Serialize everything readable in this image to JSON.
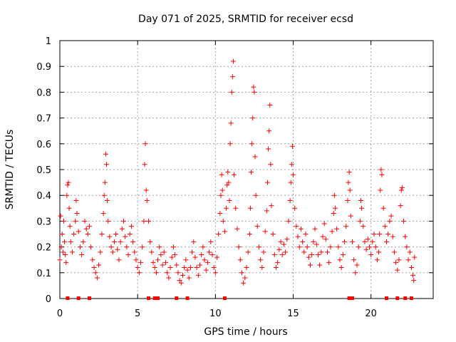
{
  "chart_data": {
    "type": "scatter",
    "title": "Day 071 of 2025, SRMTID for receiver ecsd",
    "xlabel": "GPS time / hours",
    "ylabel": "SRMTID / TECUs",
    "xlim": [
      0,
      24
    ],
    "ylim": [
      0,
      1
    ],
    "xticks": [
      0,
      5,
      10,
      15,
      20
    ],
    "xtick_labels": [
      "0",
      "5",
      "10",
      "15",
      "20"
    ],
    "yticks": [
      0,
      0.1,
      0.2,
      0.3,
      0.4,
      0.5,
      0.6,
      0.7,
      0.8,
      0.9,
      1
    ],
    "ytick_labels": [
      "0",
      "0.1",
      "0.2",
      "0.3",
      "0.4",
      "0.5",
      "0.6",
      "0.7",
      "0.8",
      "0.9",
      "1"
    ],
    "grid": true,
    "marker": "+",
    "color": "#ff0000",
    "series": [
      {
        "name": "SRMTID",
        "points": [
          [
            0.0,
            0.15
          ],
          [
            0.05,
            0.32
          ],
          [
            0.1,
            0.2
          ],
          [
            0.15,
            0.25
          ],
          [
            0.2,
            0.18
          ],
          [
            0.25,
            0.3
          ],
          [
            0.3,
            0.22
          ],
          [
            0.35,
            0.17
          ],
          [
            0.4,
            0.14
          ],
          [
            0.45,
            0.4
          ],
          [
            0.5,
            0.44
          ],
          [
            0.55,
            0.45
          ],
          [
            0.6,
            0.35
          ],
          [
            0.65,
            0.28
          ],
          [
            0.7,
            0.22
          ],
          [
            0.8,
            0.18
          ],
          [
            0.9,
            0.25
          ],
          [
            1.0,
            0.3
          ],
          [
            1.05,
            0.38
          ],
          [
            1.1,
            0.33
          ],
          [
            1.2,
            0.26
          ],
          [
            1.3,
            0.2
          ],
          [
            1.4,
            0.17
          ],
          [
            1.5,
            0.22
          ],
          [
            1.6,
            0.3
          ],
          [
            1.7,
            0.27
          ],
          [
            1.8,
            0.25
          ],
          [
            1.9,
            0.28
          ],
          [
            2.0,
            0.2
          ],
          [
            2.1,
            0.15
          ],
          [
            2.2,
            0.12
          ],
          [
            2.3,
            0.1
          ],
          [
            2.4,
            0.08
          ],
          [
            2.5,
            0.13
          ],
          [
            2.6,
            0.18
          ],
          [
            2.7,
            0.25
          ],
          [
            2.8,
            0.33
          ],
          [
            2.85,
            0.4
          ],
          [
            2.9,
            0.45
          ],
          [
            2.95,
            0.56
          ],
          [
            3.0,
            0.52
          ],
          [
            3.05,
            0.38
          ],
          [
            3.1,
            0.3
          ],
          [
            3.2,
            0.24
          ],
          [
            3.3,
            0.2
          ],
          [
            3.4,
            0.18
          ],
          [
            3.5,
            0.22
          ],
          [
            3.6,
            0.25
          ],
          [
            3.7,
            0.19
          ],
          [
            3.8,
            0.15
          ],
          [
            3.9,
            0.22
          ],
          [
            4.0,
            0.27
          ],
          [
            4.1,
            0.3
          ],
          [
            4.2,
            0.24
          ],
          [
            4.3,
            0.2
          ],
          [
            4.4,
            0.17
          ],
          [
            4.5,
            0.25
          ],
          [
            4.6,
            0.28
          ],
          [
            4.7,
            0.22
          ],
          [
            4.8,
            0.18
          ],
          [
            4.9,
            0.15
          ],
          [
            5.0,
            0.12
          ],
          [
            5.1,
            0.1
          ],
          [
            5.2,
            0.14
          ],
          [
            5.3,
            0.2
          ],
          [
            5.4,
            0.3
          ],
          [
            5.45,
            0.52
          ],
          [
            5.5,
            0.6
          ],
          [
            5.55,
            0.42
          ],
          [
            5.6,
            0.38
          ],
          [
            5.7,
            0.3
          ],
          [
            5.8,
            0.22
          ],
          [
            5.9,
            0.18
          ],
          [
            6.0,
            0.14
          ],
          [
            6.1,
            0.12
          ],
          [
            6.2,
            0.1
          ],
          [
            6.3,
            0.15
          ],
          [
            6.4,
            0.2
          ],
          [
            6.5,
            0.17
          ],
          [
            6.6,
            0.13
          ],
          [
            6.7,
            0.18
          ],
          [
            6.8,
            0.14
          ],
          [
            6.9,
            0.1
          ],
          [
            7.0,
            0.08
          ],
          [
            7.1,
            0.12
          ],
          [
            7.2,
            0.16
          ],
          [
            7.3,
            0.2
          ],
          [
            7.4,
            0.17
          ],
          [
            7.5,
            0.13
          ],
          [
            7.6,
            0.1
          ],
          [
            7.7,
            0.07
          ],
          [
            7.8,
            0.06
          ],
          [
            7.9,
            0.09
          ],
          [
            8.0,
            0.12
          ],
          [
            8.1,
            0.15
          ],
          [
            8.2,
            0.11
          ],
          [
            8.3,
            0.08
          ],
          [
            8.4,
            0.12
          ],
          [
            8.5,
            0.18
          ],
          [
            8.6,
            0.22
          ],
          [
            8.7,
            0.16
          ],
          [
            8.8,
            0.12
          ],
          [
            8.9,
            0.09
          ],
          [
            9.0,
            0.13
          ],
          [
            9.1,
            0.17
          ],
          [
            9.2,
            0.2
          ],
          [
            9.3,
            0.15
          ],
          [
            9.4,
            0.11
          ],
          [
            9.5,
            0.14
          ],
          [
            9.6,
            0.18
          ],
          [
            9.7,
            0.22
          ],
          [
            9.8,
            0.17
          ],
          [
            9.9,
            0.12
          ],
          [
            10.0,
            0.1
          ],
          [
            10.1,
            0.16
          ],
          [
            10.2,
            0.25
          ],
          [
            10.3,
            0.33
          ],
          [
            10.35,
            0.4
          ],
          [
            10.4,
            0.48
          ],
          [
            10.45,
            0.42
          ],
          [
            10.5,
            0.3
          ],
          [
            10.6,
            0.26
          ],
          [
            10.7,
            0.35
          ],
          [
            10.75,
            0.44
          ],
          [
            10.8,
            0.49
          ],
          [
            10.85,
            0.45
          ],
          [
            10.9,
            0.38
          ],
          [
            10.95,
            0.6
          ],
          [
            11.0,
            0.68
          ],
          [
            11.05,
            0.8
          ],
          [
            11.1,
            0.86
          ],
          [
            11.15,
            0.92
          ],
          [
            11.2,
            0.48
          ],
          [
            11.3,
            0.35
          ],
          [
            11.4,
            0.27
          ],
          [
            11.5,
            0.2
          ],
          [
            11.6,
            0.15
          ],
          [
            11.7,
            0.1
          ],
          [
            11.8,
            0.06
          ],
          [
            11.9,
            0.08
          ],
          [
            12.0,
            0.12
          ],
          [
            12.1,
            0.18
          ],
          [
            12.2,
            0.25
          ],
          [
            12.25,
            0.35
          ],
          [
            12.3,
            0.49
          ],
          [
            12.35,
            0.6
          ],
          [
            12.4,
            0.7
          ],
          [
            12.45,
            0.82
          ],
          [
            12.5,
            0.8
          ],
          [
            12.55,
            0.55
          ],
          [
            12.6,
            0.4
          ],
          [
            12.7,
            0.28
          ],
          [
            12.8,
            0.2
          ],
          [
            12.9,
            0.15
          ],
          [
            13.0,
            0.12
          ],
          [
            13.1,
            0.18
          ],
          [
            13.2,
            0.26
          ],
          [
            13.3,
            0.34
          ],
          [
            13.35,
            0.45
          ],
          [
            13.4,
            0.58
          ],
          [
            13.45,
            0.65
          ],
          [
            13.5,
            0.75
          ],
          [
            13.55,
            0.52
          ],
          [
            13.6,
            0.36
          ],
          [
            13.7,
            0.25
          ],
          [
            13.8,
            0.17
          ],
          [
            13.9,
            0.12
          ],
          [
            14.0,
            0.14
          ],
          [
            14.1,
            0.19
          ],
          [
            14.2,
            0.22
          ],
          [
            14.3,
            0.17
          ],
          [
            14.4,
            0.21
          ],
          [
            14.5,
            0.18
          ],
          [
            14.6,
            0.23
          ],
          [
            14.7,
            0.3
          ],
          [
            14.8,
            0.38
          ],
          [
            14.85,
            0.45
          ],
          [
            14.9,
            0.52
          ],
          [
            14.95,
            0.59
          ],
          [
            15.0,
            0.48
          ],
          [
            15.1,
            0.35
          ],
          [
            15.2,
            0.28
          ],
          [
            15.3,
            0.24
          ],
          [
            15.4,
            0.2
          ],
          [
            15.5,
            0.27
          ],
          [
            15.6,
            0.22
          ],
          [
            15.7,
            0.18
          ],
          [
            15.8,
            0.25
          ],
          [
            15.9,
            0.2
          ],
          [
            16.0,
            0.16
          ],
          [
            16.1,
            0.13
          ],
          [
            16.2,
            0.17
          ],
          [
            16.3,
            0.22
          ],
          [
            16.4,
            0.27
          ],
          [
            16.5,
            0.21
          ],
          [
            16.6,
            0.17
          ],
          [
            16.7,
            0.13
          ],
          [
            16.8,
            0.18
          ],
          [
            16.9,
            0.24
          ],
          [
            17.0,
            0.29
          ],
          [
            17.1,
            0.23
          ],
          [
            17.2,
            0.18
          ],
          [
            17.3,
            0.14
          ],
          [
            17.4,
            0.2
          ],
          [
            17.5,
            0.26
          ],
          [
            17.6,
            0.33
          ],
          [
            17.65,
            0.4
          ],
          [
            17.7,
            0.35
          ],
          [
            17.8,
            0.27
          ],
          [
            17.9,
            0.2
          ],
          [
            18.0,
            0.15
          ],
          [
            18.1,
            0.12
          ],
          [
            18.2,
            0.17
          ],
          [
            18.3,
            0.22
          ],
          [
            18.4,
            0.28
          ],
          [
            18.5,
            0.38
          ],
          [
            18.55,
            0.45
          ],
          [
            18.6,
            0.49
          ],
          [
            18.65,
            0.42
          ],
          [
            18.7,
            0.32
          ],
          [
            18.8,
            0.22
          ],
          [
            18.9,
            0.15
          ],
          [
            19.0,
            0.1
          ],
          [
            19.1,
            0.13
          ],
          [
            19.2,
            0.2
          ],
          [
            19.3,
            0.3
          ],
          [
            19.35,
            0.38
          ],
          [
            19.4,
            0.35
          ],
          [
            19.5,
            0.28
          ],
          [
            19.6,
            0.22
          ],
          [
            19.7,
            0.19
          ],
          [
            19.8,
            0.23
          ],
          [
            19.9,
            0.2
          ],
          [
            20.0,
            0.17
          ],
          [
            20.1,
            0.22
          ],
          [
            20.2,
            0.25
          ],
          [
            20.3,
            0.2
          ],
          [
            20.4,
            0.15
          ],
          [
            20.5,
            0.18
          ],
          [
            20.55,
            0.25
          ],
          [
            20.6,
            0.42
          ],
          [
            20.65,
            0.5
          ],
          [
            20.7,
            0.48
          ],
          [
            20.8,
            0.35
          ],
          [
            20.9,
            0.28
          ],
          [
            21.0,
            0.22
          ],
          [
            21.1,
            0.25
          ],
          [
            21.2,
            0.3
          ],
          [
            21.3,
            0.32
          ],
          [
            21.4,
            0.24
          ],
          [
            21.5,
            0.18
          ],
          [
            21.6,
            0.14
          ],
          [
            21.7,
            0.11
          ],
          [
            21.8,
            0.15
          ],
          [
            21.9,
            0.36
          ],
          [
            21.95,
            0.42
          ],
          [
            22.0,
            0.43
          ],
          [
            22.1,
            0.3
          ],
          [
            22.2,
            0.24
          ],
          [
            22.3,
            0.2
          ],
          [
            22.4,
            0.15
          ],
          [
            22.5,
            0.18
          ],
          [
            22.6,
            0.12
          ],
          [
            22.7,
            0.09
          ],
          [
            22.75,
            0.07
          ],
          [
            22.8,
            0.16
          ]
        ]
      }
    ],
    "zero_markers_x": [
      0.5,
      1.2,
      1.9,
      5.7,
      6.1,
      6.3,
      7.5,
      8.2,
      10.6,
      18.6,
      18.8,
      21.0,
      21.7,
      22.2,
      22.6
    ]
  }
}
